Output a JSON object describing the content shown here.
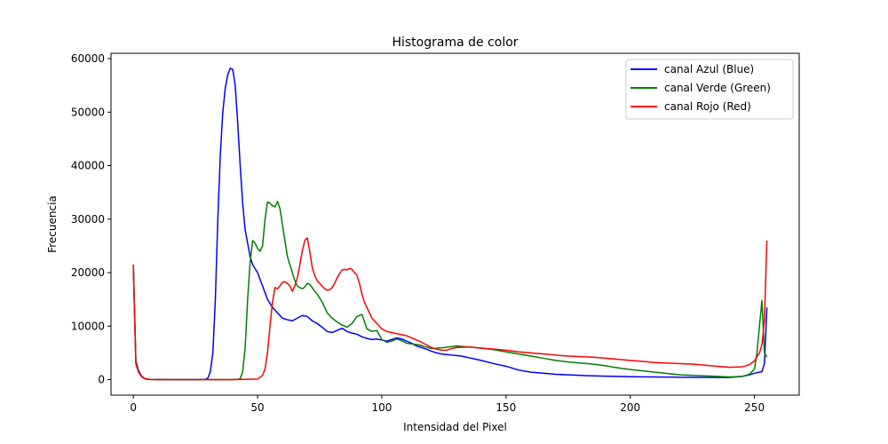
{
  "chart_data": {
    "type": "line",
    "title": "Histograma de color",
    "xlabel": "Intensidad del Pixel",
    "ylabel": "Frecuencia",
    "xlim": [
      -9,
      268
    ],
    "ylim": [
      -2900,
      61000
    ],
    "xticks": [
      0,
      50,
      100,
      150,
      200,
      250
    ],
    "yticks": [
      0,
      10000,
      20000,
      30000,
      40000,
      50000,
      60000
    ],
    "grid": false,
    "legend_position": "top-right",
    "series": [
      {
        "name": "canal Azul (Blue)",
        "color": "#0000ff",
        "x": [
          0,
          1,
          2,
          3,
          4,
          5,
          6,
          7,
          8,
          10,
          15,
          20,
          25,
          29,
          30,
          31,
          32,
          33,
          34,
          35,
          36,
          37,
          38,
          39,
          40,
          41,
          42,
          43,
          44,
          45,
          46,
          47,
          48,
          50,
          52,
          54,
          56,
          58,
          60,
          62,
          64,
          66,
          68,
          70,
          72,
          74,
          76,
          78,
          80,
          82,
          84,
          86,
          88,
          90,
          92,
          94,
          96,
          98,
          100,
          102,
          104,
          106,
          108,
          110,
          112,
          114,
          116,
          118,
          120,
          122,
          124,
          126,
          128,
          130,
          132,
          134,
          136,
          138,
          140,
          145,
          150,
          155,
          160,
          165,
          170,
          175,
          180,
          185,
          190,
          195,
          200,
          210,
          220,
          230,
          240,
          245,
          248,
          250,
          251,
          252,
          253,
          254,
          255
        ],
        "y": [
          21000,
          3500,
          1800,
          900,
          400,
          150,
          80,
          50,
          30,
          20,
          10,
          10,
          10,
          50,
          300,
          1500,
          5000,
          15000,
          30000,
          42000,
          50000,
          54500,
          57000,
          58200,
          58000,
          55000,
          48000,
          40000,
          33000,
          28000,
          25500,
          23000,
          21500,
          20000,
          17500,
          15000,
          13500,
          12500,
          11500,
          11200,
          11000,
          11500,
          12000,
          11800,
          11000,
          10500,
          9800,
          9000,
          8800,
          9200,
          9600,
          9000,
          8700,
          8500,
          8000,
          7700,
          7500,
          7600,
          7400,
          7200,
          7500,
          7800,
          7600,
          7200,
          6800,
          6300,
          6000,
          5700,
          5300,
          5000,
          4800,
          4700,
          4600,
          4500,
          4400,
          4200,
          4000,
          3800,
          3600,
          3000,
          2500,
          1800,
          1400,
          1200,
          1000,
          900,
          800,
          700,
          650,
          600,
          550,
          500,
          450,
          420,
          400,
          600,
          900,
          1200,
          1300,
          1400,
          1500,
          3000,
          13500
        ]
      },
      {
        "name": "canal Verde (Green)",
        "color": "#008000",
        "x": [
          0,
          1,
          2,
          3,
          4,
          5,
          6,
          7,
          8,
          10,
          20,
          30,
          40,
          42,
          43,
          44,
          45,
          46,
          47,
          48,
          49,
          50,
          51,
          52,
          53,
          54,
          55,
          56,
          57,
          58,
          59,
          60,
          61,
          62,
          63,
          64,
          65,
          66,
          67,
          68,
          69,
          70,
          71,
          72,
          73,
          74,
          76,
          78,
          80,
          82,
          84,
          86,
          88,
          90,
          92,
          94,
          96,
          98,
          100,
          102,
          104,
          106,
          108,
          110,
          115,
          120,
          125,
          130,
          135,
          140,
          145,
          150,
          155,
          160,
          165,
          170,
          175,
          180,
          185,
          190,
          195,
          200,
          210,
          220,
          230,
          240,
          245,
          248,
          250,
          251,
          252,
          253,
          254,
          255
        ],
        "y": [
          21500,
          3200,
          1600,
          800,
          350,
          120,
          60,
          40,
          20,
          10,
          5,
          5,
          10,
          50,
          200,
          1500,
          6000,
          15000,
          22000,
          26000,
          25500,
          24500,
          24000,
          25000,
          30000,
          33200,
          33000,
          32500,
          32300,
          33300,
          32000,
          29000,
          26000,
          23000,
          21500,
          20000,
          18500,
          17500,
          17200,
          17000,
          17300,
          18000,
          17800,
          17200,
          16500,
          16000,
          14500,
          12500,
          11500,
          10800,
          10200,
          9800,
          10500,
          11800,
          12200,
          9500,
          9000,
          9200,
          7500,
          7000,
          7200,
          7600,
          7300,
          6800,
          6500,
          5800,
          6000,
          6300,
          6100,
          5900,
          5600,
          5200,
          4800,
          4400,
          4000,
          3600,
          3300,
          3100,
          2900,
          2600,
          2200,
          1900,
          1400,
          900,
          700,
          500,
          600,
          1000,
          2000,
          5000,
          10000,
          14800,
          5000,
          4200
        ]
      },
      {
        "name": "canal Rojo (Red)",
        "color": "#ff0000",
        "x": [
          0,
          1,
          2,
          3,
          4,
          5,
          6,
          7,
          8,
          10,
          20,
          30,
          40,
          50,
          52,
          53,
          54,
          55,
          56,
          57,
          58,
          59,
          60,
          61,
          62,
          63,
          64,
          65,
          66,
          67,
          68,
          69,
          70,
          71,
          72,
          73,
          74,
          75,
          76,
          77,
          78,
          79,
          80,
          81,
          82,
          83,
          84,
          85,
          86,
          87,
          88,
          89,
          90,
          91,
          92,
          93,
          94,
          95,
          96,
          97,
          98,
          100,
          102,
          104,
          106,
          108,
          110,
          112,
          114,
          116,
          118,
          120,
          122,
          124,
          126,
          128,
          130,
          135,
          140,
          145,
          150,
          155,
          160,
          165,
          170,
          175,
          180,
          185,
          190,
          195,
          200,
          205,
          210,
          215,
          220,
          225,
          230,
          235,
          240,
          245,
          248,
          250,
          251,
          252,
          253,
          254,
          255
        ],
        "y": [
          21500,
          3000,
          1500,
          700,
          300,
          100,
          50,
          30,
          20,
          10,
          5,
          5,
          5,
          100,
          800,
          2000,
          5000,
          10000,
          14500,
          17200,
          17000,
          17500,
          18200,
          18300,
          18000,
          17500,
          16500,
          17500,
          19000,
          21500,
          24000,
          26000,
          26500,
          24000,
          21000,
          19500,
          18500,
          18000,
          17500,
          17000,
          16700,
          16800,
          17200,
          18000,
          19000,
          19800,
          20500,
          20600,
          20500,
          20800,
          20600,
          20000,
          19500,
          18000,
          16000,
          14500,
          13500,
          12500,
          11500,
          11000,
          10500,
          9500,
          9000,
          8800,
          8600,
          8400,
          8200,
          7800,
          7400,
          7000,
          6500,
          6000,
          5700,
          5500,
          5500,
          5800,
          6000,
          6100,
          5900,
          5700,
          5500,
          5200,
          5000,
          4800,
          4600,
          4400,
          4300,
          4200,
          4000,
          3800,
          3600,
          3400,
          3200,
          3100,
          3000,
          2900,
          2700,
          2500,
          2300,
          2400,
          2800,
          3500,
          4300,
          5000,
          6500,
          11000,
          26000
        ]
      }
    ]
  }
}
